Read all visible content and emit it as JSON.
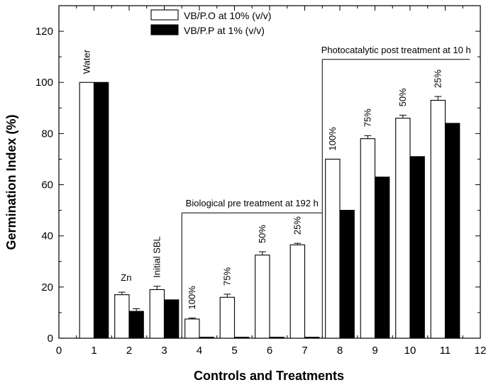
{
  "chart_data": {
    "type": "bar",
    "title": "",
    "xlabel": "Controls and Treatments",
    "ylabel": "Germination Index (%)",
    "xlim": [
      0,
      12
    ],
    "ylim": [
      0,
      130
    ],
    "x_ticks": [
      0,
      1,
      2,
      3,
      4,
      5,
      6,
      7,
      8,
      9,
      10,
      11,
      12
    ],
    "y_ticks": [
      0,
      20,
      40,
      60,
      80,
      100,
      120
    ],
    "categories": [
      1,
      2,
      3,
      4,
      5,
      6,
      7,
      8,
      9,
      10,
      11
    ],
    "series": [
      {
        "name": "VB/P.O at 10% (v/v)",
        "fill": "#ffffff",
        "values": [
          100,
          17,
          19,
          7.5,
          16,
          32.5,
          36.5,
          70,
          78,
          86,
          93
        ],
        "errors": [
          0,
          1,
          1.3,
          0.4,
          1.2,
          1.3,
          0.6,
          0,
          1.2,
          1.2,
          1.5
        ]
      },
      {
        "name": "VB/P.P at 1% (v/v)",
        "fill": "#000000",
        "values": [
          100,
          10.5,
          15,
          0.4,
          0.4,
          0.4,
          0.4,
          50,
          63,
          71,
          84
        ],
        "errors": [
          0,
          1,
          0,
          0,
          0,
          0,
          0,
          0,
          0,
          0,
          0
        ]
      }
    ],
    "bar_labels": [
      {
        "x": 1,
        "text": "Water"
      },
      {
        "x": 2,
        "text": "Zn"
      },
      {
        "x": 3,
        "text": "Initial SBL"
      },
      {
        "x": 4,
        "text": "100%"
      },
      {
        "x": 5,
        "text": "75%"
      },
      {
        "x": 6,
        "text": "50%"
      },
      {
        "x": 7,
        "text": "25%"
      },
      {
        "x": 8,
        "text": "100%"
      },
      {
        "x": 9,
        "text": "75%"
      },
      {
        "x": 10,
        "text": "50%"
      },
      {
        "x": 11,
        "text": "25%"
      }
    ],
    "brackets": [
      {
        "text": "Biological pre treatment at 192 h",
        "x_start": 3.5,
        "x_end": 7.5,
        "y": 49
      },
      {
        "text": "Photocatalytic post treatment at 10 h",
        "x_start": 7.5,
        "x_end": 11.7,
        "y": 109
      }
    ],
    "legend_position": "top-center"
  }
}
